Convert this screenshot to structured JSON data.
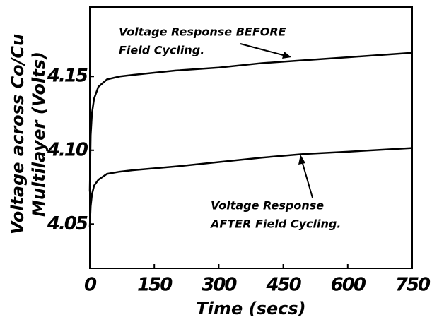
{
  "chart_data": {
    "type": "line",
    "xlabel": "Time (secs)",
    "ylabel": [
      "Voltage across Co/Cu",
      "Multilayer (Volts)"
    ],
    "annotations": [
      {
        "lines": [
          "Voltage Response BEFORE",
          "Field Cycling."
        ]
      },
      {
        "lines": [
          "Voltage Response",
          "AFTER Field Cycling."
        ]
      }
    ],
    "series": [
      {
        "name": "BEFORE",
        "color": "#000000",
        "x": [
          0,
          2,
          5,
          10,
          20,
          40,
          70,
          100,
          200,
          300,
          400,
          500,
          600,
          750
        ],
        "values": [
          4.072,
          4.11,
          4.125,
          4.135,
          4.143,
          4.148,
          4.15,
          4.151,
          4.154,
          4.156,
          4.159,
          4.161,
          4.163,
          4.166
        ]
      },
      {
        "name": "AFTER",
        "color": "#000000",
        "x": [
          0,
          2,
          5,
          10,
          20,
          40,
          70,
          100,
          200,
          300,
          400,
          500,
          600,
          750
        ],
        "values": [
          4.048,
          4.062,
          4.07,
          4.076,
          4.08,
          4.084,
          4.0855,
          4.0865,
          4.089,
          4.092,
          4.095,
          4.0975,
          4.099,
          4.1015
        ]
      }
    ],
    "xlim": [
      0,
      750
    ],
    "xticks": [
      0,
      150,
      300,
      450,
      600,
      750
    ],
    "ylim": [
      4.02,
      4.197
    ],
    "yticks": [
      {
        "value": 4.05,
        "label": "4.05"
      },
      {
        "value": 4.1,
        "label": "4.10"
      },
      {
        "value": 4.15,
        "label": "4.15"
      }
    ],
    "grid": false
  }
}
